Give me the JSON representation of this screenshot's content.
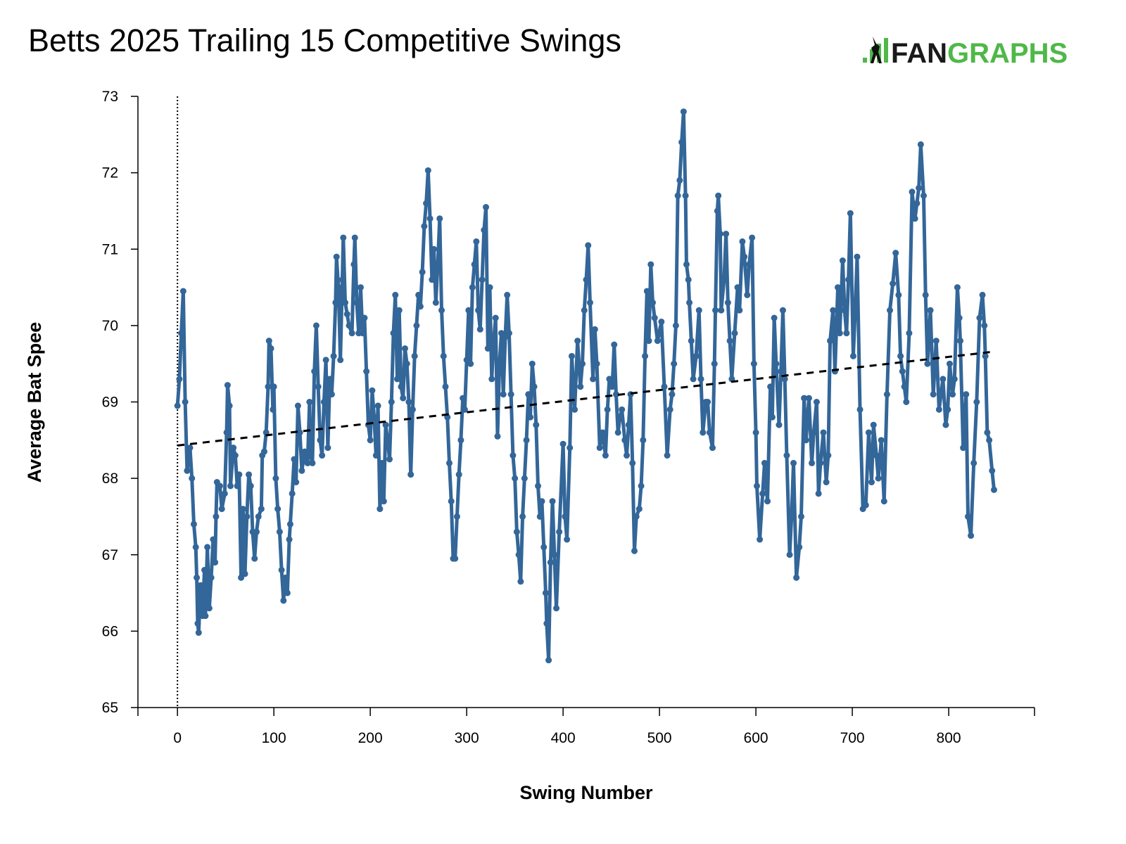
{
  "chart_data": {
    "type": "line",
    "title": "Betts 2025 Trailing 15 Competitive Swings",
    "xlabel": "Swing Number",
    "ylabel": "Average Bat Spee",
    "xlim": [
      -41,
      889
    ],
    "ylim": [
      65,
      73
    ],
    "xticks": [
      0,
      100,
      200,
      300,
      400,
      500,
      600,
      700,
      800
    ],
    "yticks": [
      65,
      66,
      67,
      68,
      69,
      70,
      71,
      72,
      73
    ],
    "grid": false,
    "series_color": "#336699",
    "trend": {
      "style": "dashed",
      "color": "#000000",
      "from": [
        0,
        68.43
      ],
      "to": [
        848,
        69.66
      ]
    },
    "reference_line": {
      "x": 0,
      "style": "dotted"
    },
    "points": [
      [
        0,
        68.95
      ],
      [
        2,
        69.3
      ],
      [
        4,
        69.9
      ],
      [
        6,
        70.45
      ],
      [
        8,
        69.0
      ],
      [
        10,
        68.1
      ],
      [
        13,
        68.4
      ],
      [
        15,
        68.0
      ],
      [
        17,
        67.4
      ],
      [
        19,
        67.1
      ],
      [
        20,
        66.7
      ],
      [
        21,
        66.1
      ],
      [
        22,
        65.98
      ],
      [
        24,
        66.6
      ],
      [
        26,
        66.2
      ],
      [
        28,
        66.8
      ],
      [
        29,
        66.2
      ],
      [
        31,
        67.1
      ],
      [
        33,
        66.3
      ],
      [
        35,
        66.7
      ],
      [
        37,
        67.2
      ],
      [
        39,
        66.9
      ],
      [
        40,
        67.5
      ],
      [
        41,
        67.95
      ],
      [
        44,
        67.9
      ],
      [
        46,
        67.6
      ],
      [
        49,
        67.8
      ],
      [
        51,
        68.6
      ],
      [
        52,
        69.22
      ],
      [
        54,
        68.95
      ],
      [
        55,
        67.9
      ],
      [
        58,
        68.4
      ],
      [
        60,
        68.3
      ],
      [
        62,
        67.9
      ],
      [
        64,
        68.05
      ],
      [
        66,
        66.7
      ],
      [
        68,
        67.6
      ],
      [
        70,
        66.75
      ],
      [
        72,
        67.5
      ],
      [
        74,
        68.05
      ],
      [
        76,
        67.9
      ],
      [
        78,
        67.3
      ],
      [
        80,
        66.95
      ],
      [
        82,
        67.3
      ],
      [
        84,
        67.5
      ],
      [
        87,
        67.6
      ],
      [
        88,
        68.3
      ],
      [
        90,
        68.35
      ],
      [
        92,
        68.6
      ],
      [
        94,
        69.2
      ],
      [
        95,
        69.8
      ],
      [
        97,
        69.7
      ],
      [
        99,
        68.9
      ],
      [
        100,
        69.2
      ],
      [
        102,
        68.0
      ],
      [
        104,
        67.6
      ],
      [
        106,
        67.3
      ],
      [
        108,
        66.8
      ],
      [
        110,
        66.4
      ],
      [
        112,
        66.7
      ],
      [
        114,
        66.5
      ],
      [
        116,
        67.2
      ],
      [
        117,
        67.4
      ],
      [
        119,
        67.8
      ],
      [
        121,
        68.25
      ],
      [
        123,
        67.95
      ],
      [
        125,
        68.95
      ],
      [
        127,
        68.6
      ],
      [
        129,
        68.1
      ],
      [
        132,
        68.35
      ],
      [
        135,
        68.2
      ],
      [
        137,
        69.0
      ],
      [
        138,
        68.3
      ],
      [
        140,
        68.2
      ],
      [
        142,
        69.4
      ],
      [
        144,
        70.0
      ],
      [
        146,
        69.2
      ],
      [
        148,
        68.5
      ],
      [
        150,
        68.3
      ],
      [
        152,
        69.0
      ],
      [
        154,
        69.55
      ],
      [
        156,
        68.4
      ],
      [
        158,
        69.3
      ],
      [
        160,
        69.1
      ],
      [
        162,
        69.6
      ],
      [
        164,
        70.3
      ],
      [
        165,
        70.9
      ],
      [
        167,
        70.5
      ],
      [
        169,
        69.55
      ],
      [
        171,
        70.6
      ],
      [
        172,
        71.15
      ],
      [
        174,
        70.3
      ],
      [
        176,
        70.15
      ],
      [
        178,
        70.0
      ],
      [
        181,
        69.9
      ],
      [
        183,
        70.8
      ],
      [
        184,
        71.15
      ],
      [
        186,
        70.3
      ],
      [
        188,
        69.9
      ],
      [
        190,
        70.5
      ],
      [
        192,
        69.9
      ],
      [
        194,
        70.1
      ],
      [
        196,
        69.4
      ],
      [
        198,
        68.7
      ],
      [
        200,
        68.5
      ],
      [
        202,
        69.15
      ],
      [
        204,
        68.8
      ],
      [
        206,
        68.3
      ],
      [
        208,
        68.95
      ],
      [
        210,
        67.6
      ],
      [
        212,
        68.2
      ],
      [
        214,
        67.7
      ],
      [
        216,
        68.7
      ],
      [
        218,
        68.5
      ],
      [
        220,
        68.25
      ],
      [
        222,
        69.0
      ],
      [
        224,
        69.9
      ],
      [
        226,
        70.4
      ],
      [
        228,
        69.3
      ],
      [
        230,
        70.2
      ],
      [
        232,
        69.2
      ],
      [
        234,
        69.05
      ],
      [
        236,
        69.7
      ],
      [
        238,
        69.5
      ],
      [
        240,
        69.0
      ],
      [
        242,
        68.05
      ],
      [
        244,
        68.9
      ],
      [
        246,
        69.6
      ],
      [
        248,
        70.0
      ],
      [
        250,
        70.4
      ],
      [
        252,
        70.25
      ],
      [
        254,
        70.7
      ],
      [
        256,
        71.3
      ],
      [
        258,
        71.6
      ],
      [
        260,
        72.03
      ],
      [
        262,
        71.4
      ],
      [
        264,
        70.6
      ],
      [
        266,
        71.0
      ],
      [
        268,
        70.3
      ],
      [
        270,
        70.8
      ],
      [
        272,
        71.4
      ],
      [
        274,
        70.2
      ],
      [
        276,
        69.6
      ],
      [
        278,
        69.2
      ],
      [
        280,
        68.8
      ],
      [
        282,
        68.2
      ],
      [
        284,
        67.7
      ],
      [
        286,
        66.95
      ],
      [
        288,
        66.95
      ],
      [
        290,
        67.5
      ],
      [
        292,
        68.05
      ],
      [
        294,
        68.5
      ],
      [
        296,
        69.05
      ],
      [
        298,
        68.9
      ],
      [
        300,
        69.55
      ],
      [
        302,
        70.2
      ],
      [
        304,
        69.5
      ],
      [
        306,
        70.5
      ],
      [
        308,
        70.8
      ],
      [
        310,
        71.1
      ],
      [
        312,
        70.2
      ],
      [
        314,
        69.95
      ],
      [
        316,
        70.6
      ],
      [
        318,
        71.25
      ],
      [
        320,
        71.55
      ],
      [
        322,
        69.7
      ],
      [
        324,
        70.5
      ],
      [
        326,
        69.3
      ],
      [
        328,
        69.8
      ],
      [
        330,
        70.1
      ],
      [
        332,
        68.55
      ],
      [
        334,
        69.5
      ],
      [
        336,
        69.9
      ],
      [
        338,
        69.1
      ],
      [
        340,
        69.85
      ],
      [
        342,
        70.4
      ],
      [
        344,
        69.9
      ],
      [
        346,
        69.1
      ],
      [
        348,
        68.3
      ],
      [
        350,
        68.0
      ],
      [
        352,
        67.3
      ],
      [
        354,
        67.0
      ],
      [
        356,
        66.65
      ],
      [
        358,
        67.5
      ],
      [
        360,
        68.0
      ],
      [
        362,
        68.5
      ],
      [
        364,
        69.1
      ],
      [
        366,
        68.8
      ],
      [
        368,
        69.5
      ],
      [
        370,
        69.2
      ],
      [
        372,
        68.7
      ],
      [
        374,
        67.9
      ],
      [
        376,
        67.5
      ],
      [
        378,
        67.7
      ],
      [
        380,
        67.1
      ],
      [
        382,
        66.5
      ],
      [
        383,
        66.1
      ],
      [
        385,
        65.62
      ],
      [
        387,
        66.9
      ],
      [
        389,
        67.7
      ],
      [
        391,
        67.0
      ],
      [
        393,
        66.3
      ],
      [
        396,
        67.3
      ],
      [
        400,
        68.45
      ],
      [
        402,
        67.5
      ],
      [
        404,
        67.2
      ],
      [
        407,
        68.4
      ],
      [
        409,
        69.6
      ],
      [
        412,
        68.9
      ],
      [
        415,
        69.8
      ],
      [
        418,
        69.2
      ],
      [
        420,
        69.5
      ],
      [
        422,
        70.2
      ],
      [
        424,
        70.6
      ],
      [
        426,
        71.05
      ],
      [
        428,
        70.3
      ],
      [
        431,
        69.3
      ],
      [
        433,
        69.95
      ],
      [
        435,
        69.5
      ],
      [
        438,
        68.4
      ],
      [
        441,
        68.6
      ],
      [
        444,
        68.3
      ],
      [
        446,
        68.9
      ],
      [
        448,
        69.3
      ],
      [
        451,
        69.2
      ],
      [
        453,
        69.75
      ],
      [
        455,
        69.1
      ],
      [
        457,
        68.6
      ],
      [
        459,
        68.8
      ],
      [
        461,
        68.9
      ],
      [
        464,
        68.5
      ],
      [
        466,
        68.3
      ],
      [
        468,
        68.7
      ],
      [
        470,
        69.1
      ],
      [
        472,
        68.2
      ],
      [
        474,
        67.05
      ],
      [
        476,
        67.5
      ],
      [
        479,
        67.6
      ],
      [
        481,
        67.9
      ],
      [
        483,
        68.5
      ],
      [
        485,
        69.6
      ],
      [
        487,
        70.45
      ],
      [
        489,
        69.8
      ],
      [
        491,
        70.8
      ],
      [
        493,
        70.3
      ],
      [
        495,
        70.1
      ],
      [
        498,
        69.8
      ],
      [
        502,
        70.05
      ],
      [
        505,
        69.2
      ],
      [
        508,
        68.3
      ],
      [
        511,
        68.9
      ],
      [
        513,
        69.1
      ],
      [
        515,
        69.5
      ],
      [
        517,
        70.0
      ],
      [
        519,
        71.7
      ],
      [
        521,
        71.9
      ],
      [
        523,
        72.4
      ],
      [
        525,
        72.8
      ],
      [
        527,
        71.7
      ],
      [
        528,
        70.8
      ],
      [
        530,
        70.6
      ],
      [
        531,
        70.3
      ],
      [
        533,
        69.8
      ],
      [
        535,
        69.3
      ],
      [
        538,
        69.6
      ],
      [
        541,
        70.2
      ],
      [
        543,
        69.3
      ],
      [
        545,
        68.6
      ],
      [
        548,
        69.0
      ],
      [
        550,
        69.0
      ],
      [
        552,
        68.6
      ],
      [
        555,
        68.4
      ],
      [
        557,
        69.5
      ],
      [
        558,
        70.2
      ],
      [
        560,
        71.5
      ],
      [
        561,
        71.7
      ],
      [
        563,
        71.2
      ],
      [
        564,
        70.2
      ],
      [
        567,
        70.6
      ],
      [
        569,
        71.2
      ],
      [
        571,
        70.3
      ],
      [
        573,
        69.8
      ],
      [
        575,
        69.3
      ],
      [
        578,
        69.9
      ],
      [
        581,
        70.5
      ],
      [
        583,
        70.2
      ],
      [
        586,
        71.1
      ],
      [
        588,
        70.9
      ],
      [
        591,
        70.4
      ],
      [
        593,
        70.8
      ],
      [
        596,
        71.15
      ],
      [
        598,
        69.5
      ],
      [
        600,
        68.6
      ],
      [
        601,
        67.9
      ],
      [
        604,
        67.2
      ],
      [
        607,
        67.8
      ],
      [
        609,
        68.2
      ],
      [
        612,
        67.7
      ],
      [
        615,
        69.2
      ],
      [
        617,
        68.8
      ],
      [
        619,
        70.1
      ],
      [
        621,
        69.5
      ],
      [
        624,
        68.7
      ],
      [
        626,
        69.4
      ],
      [
        628,
        70.2
      ],
      [
        630,
        69.3
      ],
      [
        632,
        68.3
      ],
      [
        635,
        67.0
      ],
      [
        637,
        67.5
      ],
      [
        639,
        68.2
      ],
      [
        642,
        66.7
      ],
      [
        645,
        67.1
      ],
      [
        647,
        67.5
      ],
      [
        650,
        69.05
      ],
      [
        652,
        68.5
      ],
      [
        655,
        69.05
      ],
      [
        658,
        68.2
      ],
      [
        660,
        68.6
      ],
      [
        663,
        69.0
      ],
      [
        665,
        67.8
      ],
      [
        667,
        68.2
      ],
      [
        670,
        68.6
      ],
      [
        673,
        67.95
      ],
      [
        675,
        68.3
      ],
      [
        677,
        69.8
      ],
      [
        680,
        70.2
      ],
      [
        682,
        69.4
      ],
      [
        685,
        70.5
      ],
      [
        687,
        69.9
      ],
      [
        690,
        70.85
      ],
      [
        692,
        70.2
      ],
      [
        694,
        69.9
      ],
      [
        696,
        70.6
      ],
      [
        698,
        71.47
      ],
      [
        701,
        69.6
      ],
      [
        703,
        70.2
      ],
      [
        705,
        70.9
      ],
      [
        708,
        68.9
      ],
      [
        711,
        67.6
      ],
      [
        714,
        67.65
      ],
      [
        717,
        68.6
      ],
      [
        720,
        67.95
      ],
      [
        722,
        68.7
      ],
      [
        725,
        68.3
      ],
      [
        727,
        68.0
      ],
      [
        730,
        68.5
      ],
      [
        733,
        67.7
      ],
      [
        736,
        69.1
      ],
      [
        739,
        70.2
      ],
      [
        742,
        70.55
      ],
      [
        745,
        70.95
      ],
      [
        748,
        70.4
      ],
      [
        750,
        69.6
      ],
      [
        752,
        69.4
      ],
      [
        754,
        69.2
      ],
      [
        756,
        69.0
      ],
      [
        759,
        69.9
      ],
      [
        762,
        71.75
      ],
      [
        765,
        71.4
      ],
      [
        767,
        71.6
      ],
      [
        769,
        71.8
      ],
      [
        771,
        72.37
      ],
      [
        774,
        71.7
      ],
      [
        776,
        70.4
      ],
      [
        778,
        69.5
      ],
      [
        781,
        70.2
      ],
      [
        784,
        69.1
      ],
      [
        787,
        69.8
      ],
      [
        790,
        68.9
      ],
      [
        792,
        69.1
      ],
      [
        794,
        69.3
      ],
      [
        797,
        68.7
      ],
      [
        799,
        68.9
      ],
      [
        801,
        69.5
      ],
      [
        804,
        69.1
      ],
      [
        806,
        69.3
      ],
      [
        809,
        70.5
      ],
      [
        811,
        70.1
      ],
      [
        812,
        69.8
      ],
      [
        815,
        68.4
      ],
      [
        818,
        69.1
      ],
      [
        820,
        67.5
      ],
      [
        823,
        67.25
      ],
      [
        826,
        68.2
      ],
      [
        829,
        69.0
      ],
      [
        832,
        70.1
      ],
      [
        835,
        70.4
      ],
      [
        837,
        70.0
      ],
      [
        838,
        69.6
      ],
      [
        840,
        68.6
      ],
      [
        842,
        68.5
      ],
      [
        845,
        68.1
      ],
      [
        847,
        67.85
      ]
    ]
  },
  "logo": {
    "text_dark": "FAN",
    "text_green": "GRAPHS",
    "dark_color": "#1a1a1a",
    "green_color": "#4fb848"
  }
}
